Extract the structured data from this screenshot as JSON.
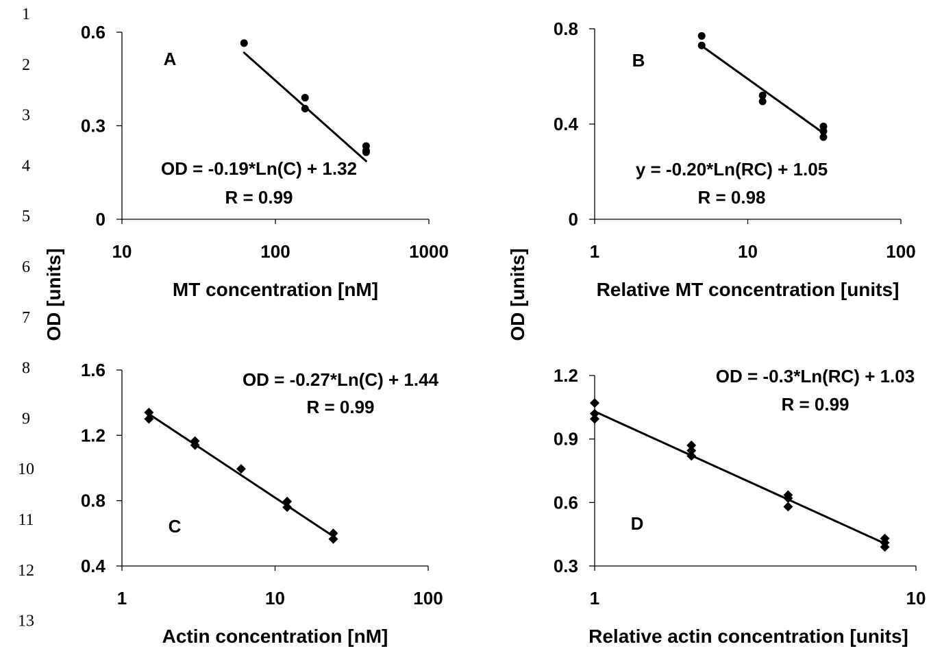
{
  "line_numbers": [
    "1",
    "2",
    "3",
    "4",
    "5",
    "6",
    "7",
    "8",
    "9",
    "10",
    "11",
    "12",
    "13"
  ],
  "shared_labels": {
    "y_axis": "OD [units]"
  },
  "chart_data": [
    {
      "type": "scatter",
      "panel": "A",
      "xscale": "log",
      "xlim": [
        10,
        1000
      ],
      "ylim": [
        0,
        0.6
      ],
      "xticks": [
        "10",
        "100",
        "1000"
      ],
      "yticks": [
        "0",
        "0.3",
        "0.6"
      ],
      "xlabel": "MT concentration [nM]",
      "ylabel": "OD [units]",
      "marker": "circle",
      "equation": "OD = -0.19*Ln(C) + 1.32",
      "r_text": "R = 0.99",
      "points": [
        {
          "x": 62.5,
          "y": 0.565
        },
        {
          "x": 156,
          "y": 0.39
        },
        {
          "x": 156,
          "y": 0.355
        },
        {
          "x": 390,
          "y": 0.235
        },
        {
          "x": 390,
          "y": 0.22
        },
        {
          "x": 390,
          "y": 0.215
        }
      ],
      "fit": {
        "slope": -0.19,
        "intercept": 1.32,
        "x_range": [
          62.5,
          390
        ]
      }
    },
    {
      "type": "scatter",
      "panel": "B",
      "xscale": "log",
      "xlim": [
        1,
        100
      ],
      "ylim": [
        0,
        0.8
      ],
      "xticks": [
        "1",
        "10",
        "100"
      ],
      "yticks": [
        "0",
        "0.4",
        "0.8"
      ],
      "xlabel": "Relative MT concentration [units]",
      "ylabel": "OD [units]",
      "marker": "circle",
      "equation": "y = -0.20*Ln(RC) + 1.05",
      "r_text": "R = 0.98",
      "points": [
        {
          "x": 5,
          "y": 0.77
        },
        {
          "x": 5,
          "y": 0.73
        },
        {
          "x": 12.5,
          "y": 0.52
        },
        {
          "x": 12.5,
          "y": 0.495
        },
        {
          "x": 31.2,
          "y": 0.39
        },
        {
          "x": 31.2,
          "y": 0.37
        },
        {
          "x": 31.2,
          "y": 0.345
        }
      ],
      "fit": {
        "slope": -0.2,
        "intercept": 1.05,
        "x_range": [
          5,
          31.2
        ]
      }
    },
    {
      "type": "scatter",
      "panel": "C",
      "xscale": "log",
      "xlim": [
        1,
        100
      ],
      "ylim": [
        0.4,
        1.6
      ],
      "xticks": [
        "1",
        "10",
        "100"
      ],
      "yticks": [
        "0.4",
        "0.8",
        "1.2",
        "1.6"
      ],
      "xlabel": "Actin concentration [nM]",
      "ylabel": "OD [units]",
      "marker": "diamond",
      "equation": "OD = -0.27*Ln(C) + 1.44",
      "r_text": "R = 0.99",
      "points": [
        {
          "x": 1.5,
          "y": 1.34
        },
        {
          "x": 1.5,
          "y": 1.3
        },
        {
          "x": 3,
          "y": 1.165
        },
        {
          "x": 3,
          "y": 1.14
        },
        {
          "x": 6,
          "y": 0.995
        },
        {
          "x": 12,
          "y": 0.795
        },
        {
          "x": 12,
          "y": 0.76
        },
        {
          "x": 24,
          "y": 0.6
        },
        {
          "x": 24,
          "y": 0.565
        }
      ],
      "fit": {
        "slope": -0.27,
        "intercept": 1.44,
        "x_range": [
          1.5,
          24
        ]
      }
    },
    {
      "type": "scatter",
      "panel": "D",
      "xscale": "log",
      "xlim": [
        1,
        10
      ],
      "ylim": [
        0.3,
        1.2
      ],
      "xticks": [
        "1",
        "10"
      ],
      "yticks": [
        "0.3",
        "0.6",
        "0.9",
        "1.2"
      ],
      "xlabel": "Relative actin concentration [units]",
      "ylabel": "OD [units]",
      "marker": "diamond",
      "equation": "OD = -0.3*Ln(RC) + 1.03",
      "r_text": "R = 0.99",
      "points": [
        {
          "x": 1,
          "y": 1.07
        },
        {
          "x": 1,
          "y": 1.02
        },
        {
          "x": 1,
          "y": 0.995
        },
        {
          "x": 2,
          "y": 0.87
        },
        {
          "x": 2,
          "y": 0.845
        },
        {
          "x": 2,
          "y": 0.82
        },
        {
          "x": 4,
          "y": 0.635
        },
        {
          "x": 4,
          "y": 0.62
        },
        {
          "x": 4,
          "y": 0.58
        },
        {
          "x": 8,
          "y": 0.43
        },
        {
          "x": 8,
          "y": 0.41
        },
        {
          "x": 8,
          "y": 0.39
        }
      ],
      "fit": {
        "slope": -0.3,
        "intercept": 1.03,
        "x_range": [
          1,
          8
        ]
      }
    }
  ]
}
